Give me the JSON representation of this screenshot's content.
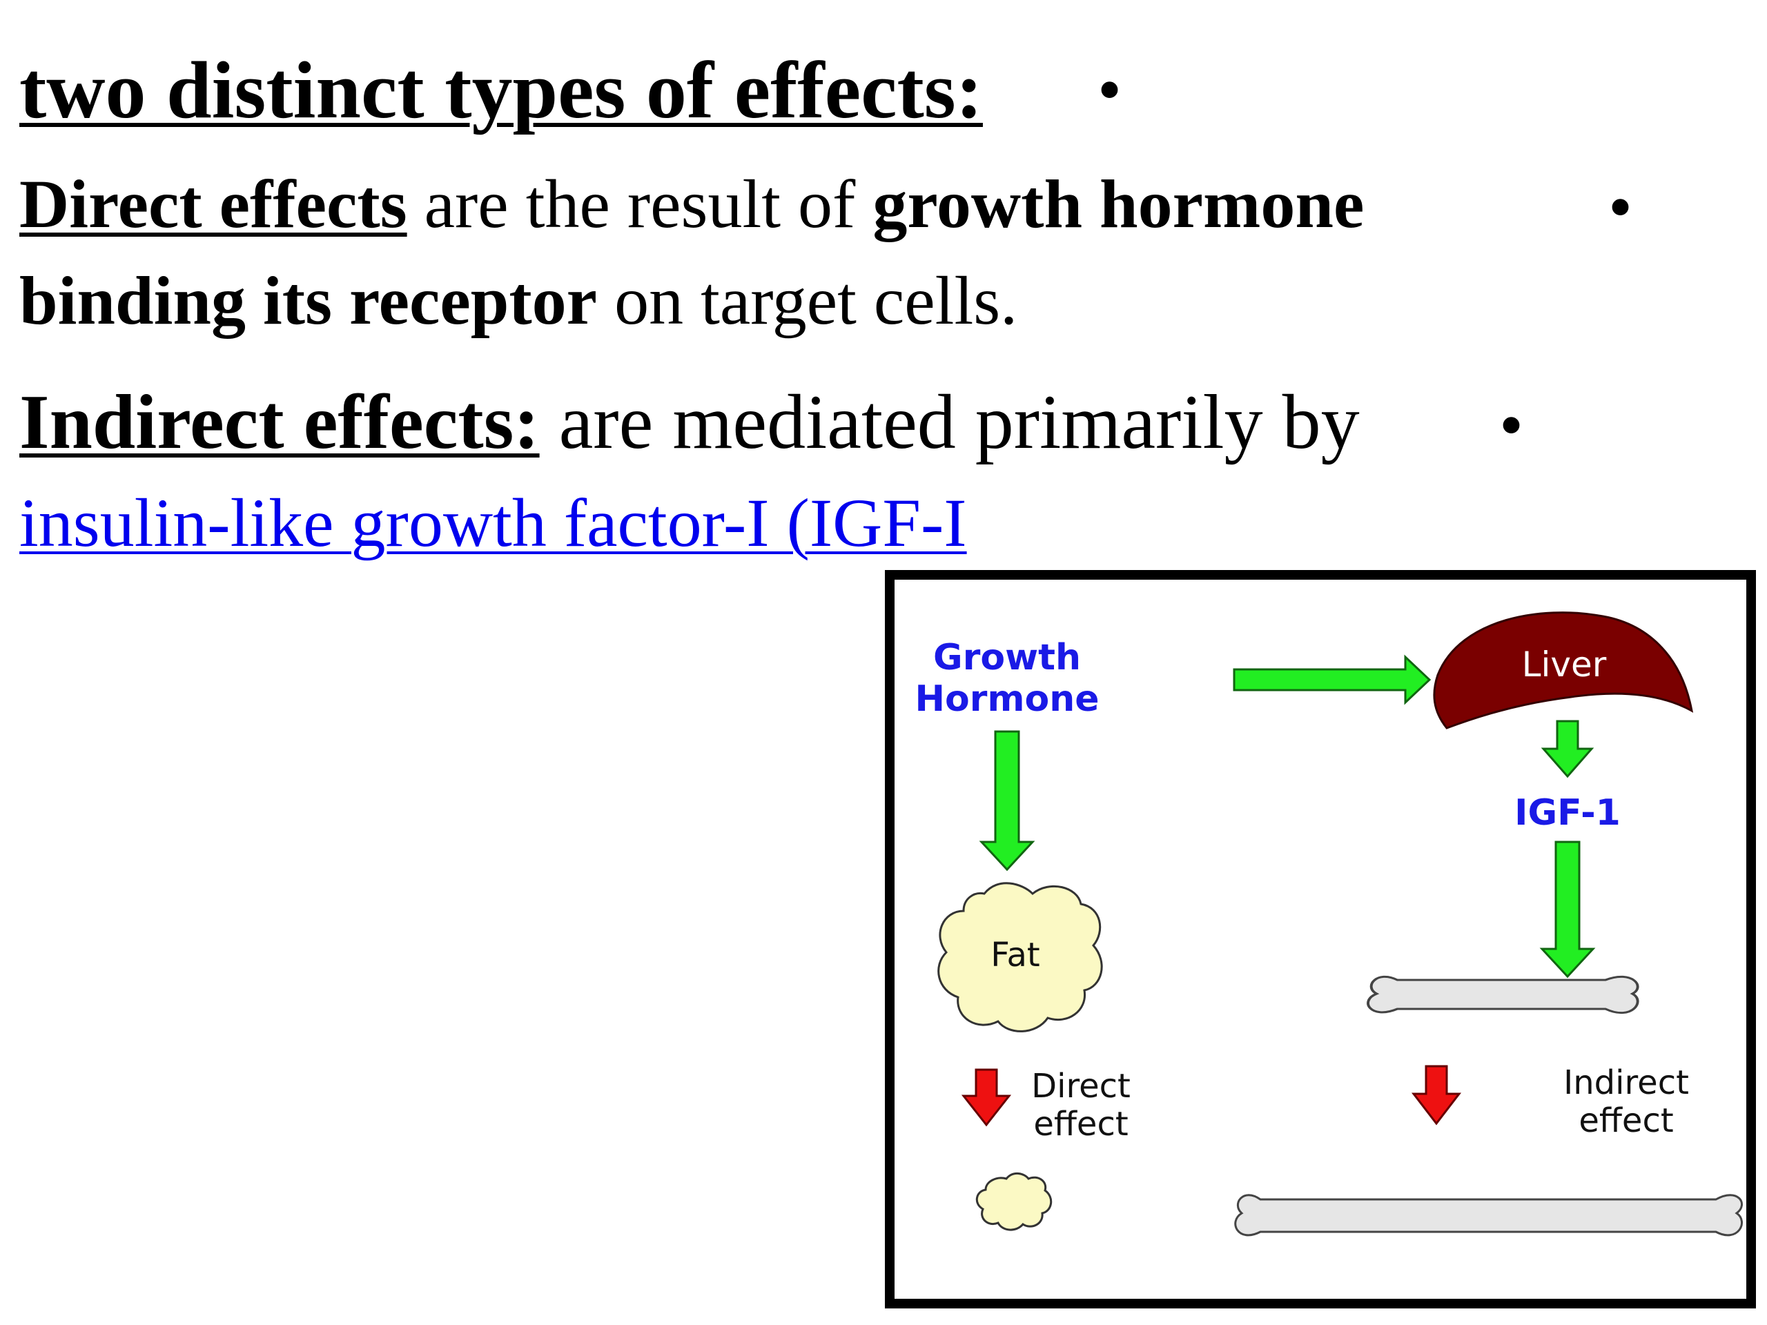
{
  "bullet_char": "•",
  "heading": {
    "text": "two distinct types of effects:"
  },
  "direct": {
    "term": "Direct effects",
    "text1": " are the result of ",
    "bold1": "growth hormone",
    "bold2": "binding its receptor",
    "text2": " on target cells."
  },
  "indirect": {
    "term": "Indirect effects:",
    "text1": " are mediated primarily by",
    "link": "insulin-like growth factor-I (IGF-I"
  },
  "figure": {
    "growth_hormone_line1": "Growth",
    "growth_hormone_line2": "Hormone",
    "liver": "Liver",
    "igf1": "IGF-1",
    "fat": "Fat",
    "direct_line1": "Direct",
    "direct_line2": "effect",
    "indirect_line1": "Indirect",
    "indirect_line2": "effect"
  },
  "colors": {
    "arrow_green": "#22ee22",
    "arrow_red": "#ee1111",
    "liver": "#7a0000",
    "fat": "#fbf9c4",
    "bone": "#e6e6e6",
    "label_blue": "#1a1ae6",
    "link_blue": "#0000ee"
  }
}
